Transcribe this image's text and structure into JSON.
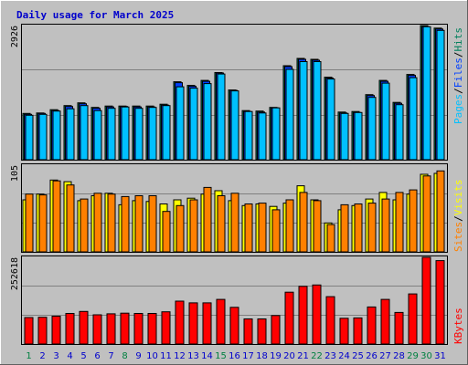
{
  "title": "Daily usage for March 2025",
  "colors": {
    "background": "#c0c0c0",
    "panel": "#c0c0c0",
    "title": "#0000cc",
    "pages": "#00c0ff",
    "files": "#0040ff",
    "hits": "#00805c",
    "sites": "#ff8000",
    "visits": "#ffff00",
    "kbytes": "#ff0000",
    "weekday_label": "#0000cc",
    "weekend_label": "#008040"
  },
  "chart_data": [
    {
      "type": "bar",
      "panel": "hits-files-pages",
      "ymax_label": "2926",
      "ylim": [
        0,
        2926
      ],
      "legend": [
        {
          "label": "Pages",
          "color": "#00c0ff"
        },
        {
          "label": "/",
          "color": "#000000"
        },
        {
          "label": "Files",
          "color": "#0040ff"
        },
        {
          "label": "/",
          "color": "#000000"
        },
        {
          "label": "Hits",
          "color": "#00805c"
        }
      ],
      "categories": [
        "1",
        "2",
        "3",
        "4",
        "5",
        "6",
        "7",
        "8",
        "9",
        "10",
        "11",
        "12",
        "13",
        "14",
        "15",
        "16",
        "17",
        "18",
        "19",
        "20",
        "21",
        "22",
        "23",
        "24",
        "25",
        "26",
        "27",
        "28",
        "29",
        "30",
        "31"
      ],
      "series": [
        {
          "key": "hits",
          "color": "#00805c",
          "values": [
            1010,
            1020,
            1090,
            1180,
            1240,
            1140,
            1170,
            1170,
            1170,
            1170,
            1210,
            1700,
            1620,
            1730,
            1900,
            1520,
            1070,
            1060,
            1140,
            2050,
            2210,
            2190,
            1800,
            1040,
            1050,
            1420,
            1730,
            1250,
            1860,
            2926,
            2870
          ]
        },
        {
          "key": "files",
          "color": "#0040ff",
          "values": [
            990,
            1010,
            1070,
            1160,
            1220,
            1120,
            1150,
            1160,
            1150,
            1150,
            1190,
            1680,
            1600,
            1710,
            1890,
            1510,
            1050,
            1040,
            1130,
            2030,
            2190,
            2170,
            1780,
            1020,
            1030,
            1400,
            1710,
            1230,
            1840,
            2900,
            2850
          ]
        },
        {
          "key": "pages",
          "color": "#00c0ff",
          "values": [
            970,
            990,
            1060,
            1110,
            1180,
            1070,
            1120,
            1150,
            1120,
            1140,
            1180,
            1590,
            1560,
            1660,
            1870,
            1500,
            1050,
            1020,
            1130,
            1970,
            2140,
            2140,
            1760,
            1010,
            1030,
            1360,
            1670,
            1200,
            1790,
            2900,
            2820
          ]
        }
      ]
    },
    {
      "type": "bar",
      "panel": "visits-sites",
      "ymax_label": "105",
      "ylim": [
        0,
        105
      ],
      "legend": [
        {
          "label": "Sites",
          "color": "#ff8000"
        },
        {
          "label": "/",
          "color": "#000000"
        },
        {
          "label": "Visits",
          "color": "#ffff00"
        }
      ],
      "categories": [
        "1",
        "2",
        "3",
        "4",
        "5",
        "6",
        "7",
        "8",
        "9",
        "10",
        "11",
        "12",
        "13",
        "14",
        "15",
        "16",
        "17",
        "18",
        "19",
        "20",
        "21",
        "22",
        "23",
        "24",
        "25",
        "26",
        "27",
        "28",
        "29",
        "30",
        "31"
      ],
      "series": [
        {
          "key": "visits",
          "color": "#ffff00",
          "values": [
            63,
            70,
            87,
            85,
            62,
            68,
            71,
            57,
            62,
            61,
            58,
            63,
            65,
            70,
            74,
            62,
            56,
            58,
            55,
            59,
            80,
            63,
            35,
            51,
            56,
            64,
            72,
            63,
            70,
            94,
            95
          ]
        },
        {
          "key": "sites",
          "color": "#ff8000",
          "values": [
            70,
            69,
            86,
            81,
            64,
            71,
            70,
            67,
            68,
            68,
            49,
            56,
            63,
            78,
            68,
            71,
            58,
            59,
            51,
            63,
            72,
            62,
            33,
            57,
            58,
            59,
            64,
            72,
            75,
            92,
            98
          ]
        }
      ]
    },
    {
      "type": "bar",
      "panel": "kbytes",
      "ymax_label": "252618",
      "ylim": [
        0,
        252618
      ],
      "legend": [
        {
          "label": "KBytes",
          "color": "#ff0000"
        }
      ],
      "categories": [
        "1",
        "2",
        "3",
        "4",
        "5",
        "6",
        "7",
        "8",
        "9",
        "10",
        "11",
        "12",
        "13",
        "14",
        "15",
        "16",
        "17",
        "18",
        "19",
        "20",
        "21",
        "22",
        "23",
        "24",
        "25",
        "26",
        "27",
        "28",
        "29",
        "30",
        "31"
      ],
      "series": [
        {
          "key": "kbytes",
          "color": "#ff0000",
          "values": [
            77000,
            78000,
            81000,
            89000,
            95000,
            85000,
            88000,
            90000,
            89000,
            89000,
            94000,
            125000,
            120000,
            120000,
            130000,
            107000,
            73000,
            73000,
            83000,
            151000,
            168000,
            172000,
            138000,
            75000,
            76000,
            108000,
            130000,
            92000,
            146000,
            252618,
            243000
          ]
        }
      ]
    }
  ],
  "x_axis": {
    "labels": [
      "1",
      "2",
      "3",
      "4",
      "5",
      "6",
      "7",
      "8",
      "9",
      "10",
      "11",
      "12",
      "13",
      "14",
      "15",
      "16",
      "17",
      "18",
      "19",
      "20",
      "21",
      "22",
      "23",
      "24",
      "25",
      "26",
      "27",
      "28",
      "29",
      "30",
      "31"
    ],
    "weekend": [
      1,
      8,
      15,
      22,
      29,
      30
    ]
  }
}
